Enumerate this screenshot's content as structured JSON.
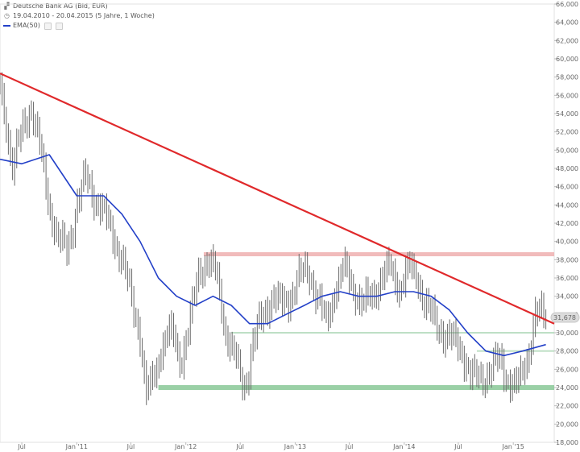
{
  "legend": {
    "title": "Deutsche Bank AG (Bid, EUR)",
    "range": "19.04.2010 - 20.04.2015 (5 Jahre, 1 Woche)",
    "ema": "EMA(50)"
  },
  "icons": {
    "title": "chart-icon",
    "range": "clock-icon",
    "ema": "line-icon"
  },
  "colors": {
    "price": "#6a6a6a",
    "ema": "#2340c8",
    "trend": "#e0292b",
    "resistance": "#f0b4b4",
    "support": "#b7dcbf",
    "support_strong": "#8fcb9c",
    "last_badge": "#dcdcdc"
  },
  "chart_data": {
    "type": "line",
    "ylim": [
      18,
      66
    ],
    "yticks": [
      "18,000",
      "20,000",
      "22,000",
      "24,000",
      "26,000",
      "28,000",
      "30,000",
      "32,000",
      "34,000",
      "36,000",
      "38,000",
      "40,000",
      "42,000",
      "44,000",
      "46,000",
      "48,000",
      "50,000",
      "52,000",
      "54,000",
      "56,000",
      "58,000",
      "60,000",
      "62,000",
      "64,000",
      "66,000"
    ],
    "xlim": [
      "2010-04-19",
      "2015-05-18"
    ],
    "xticks": [
      {
        "label": "Jul",
        "date": "2010-07-01"
      },
      {
        "label": "Jan '11",
        "date": "2011-01-01"
      },
      {
        "label": "Jul",
        "date": "2011-07-01"
      },
      {
        "label": "Jan '12",
        "date": "2012-01-01"
      },
      {
        "label": "Jul",
        "date": "2012-07-01"
      },
      {
        "label": "Jan '13",
        "date": "2013-01-01"
      },
      {
        "label": "Jul",
        "date": "2013-07-01"
      },
      {
        "label": "Jan '14",
        "date": "2014-01-01"
      },
      {
        "label": "Jul",
        "date": "2014-07-01"
      },
      {
        "label": "Jan '15",
        "date": "2015-01-01"
      }
    ],
    "last_value": "31,678",
    "series": [
      {
        "kind": "price",
        "x": [
          "2010-04-19",
          "2010-05-10",
          "2010-06-01",
          "2010-07-01",
          "2010-08-01",
          "2010-09-01",
          "2010-10-01",
          "2010-11-01",
          "2010-12-01",
          "2011-01-01",
          "2011-02-01",
          "2011-03-01",
          "2011-04-01",
          "2011-05-01",
          "2011-06-01",
          "2011-07-01",
          "2011-08-01",
          "2011-08-20",
          "2011-09-15",
          "2011-10-15",
          "2011-11-15",
          "2011-12-15",
          "2012-01-15",
          "2012-02-15",
          "2012-03-15",
          "2012-04-15",
          "2012-05-15",
          "2012-06-15",
          "2012-07-15",
          "2012-08-15",
          "2012-09-15",
          "2012-10-15",
          "2012-11-15",
          "2012-12-15",
          "2013-01-15",
          "2013-02-15",
          "2013-03-15",
          "2013-04-15",
          "2013-05-15",
          "2013-06-15",
          "2013-07-15",
          "2013-08-15",
          "2013-09-15",
          "2013-10-15",
          "2013-11-15",
          "2013-12-15",
          "2014-01-15",
          "2014-02-15",
          "2014-03-15",
          "2014-04-15",
          "2014-05-15",
          "2014-06-15",
          "2014-07-15",
          "2014-08-15",
          "2014-09-15",
          "2014-10-15",
          "2014-11-15",
          "2014-12-15",
          "2015-01-15",
          "2015-02-15",
          "2015-03-15",
          "2015-04-20"
        ],
        "values": [
          57,
          53,
          48,
          52,
          55,
          50,
          44,
          40,
          39,
          44,
          47,
          45,
          43,
          41,
          38,
          34,
          30,
          23,
          25,
          29,
          30,
          27,
          31,
          37,
          38,
          36,
          30,
          27,
          24,
          29,
          32,
          34,
          33,
          34,
          36,
          37,
          34,
          31,
          35,
          37,
          35,
          33,
          34,
          36,
          37,
          35,
          37,
          36,
          33,
          31,
          30,
          29,
          28,
          25,
          25,
          26,
          27,
          25,
          24,
          27,
          32,
          31.7
        ]
      },
      {
        "kind": "ema",
        "x": [
          "2010-04-19",
          "2010-07-01",
          "2010-10-01",
          "2011-01-01",
          "2011-04-01",
          "2011-06-01",
          "2011-08-01",
          "2011-10-01",
          "2011-12-01",
          "2012-02-01",
          "2012-04-01",
          "2012-06-01",
          "2012-08-01",
          "2012-10-01",
          "2012-12-01",
          "2013-02-01",
          "2013-04-01",
          "2013-06-01",
          "2013-08-01",
          "2013-10-01",
          "2013-12-01",
          "2014-02-01",
          "2014-04-01",
          "2014-06-01",
          "2014-08-01",
          "2014-10-01",
          "2014-12-01",
          "2015-02-01",
          "2015-04-20"
        ],
        "values": [
          49,
          48.5,
          49.5,
          45,
          45,
          43,
          40,
          36,
          34,
          33,
          34,
          33,
          31,
          31,
          32,
          33,
          34,
          34.5,
          34,
          34,
          34.5,
          34.5,
          34,
          32.5,
          30,
          28,
          27.5,
          28,
          28.7
        ]
      },
      {
        "kind": "trend",
        "x": [
          "2010-04-19",
          "2015-05-18"
        ],
        "values": [
          58.4,
          31.0
        ]
      }
    ],
    "levels": [
      {
        "kind": "resistance",
        "value": 38.6,
        "from": "2012-03-01"
      },
      {
        "kind": "support",
        "value": 30.0,
        "from": "2012-06-01"
      },
      {
        "kind": "support",
        "value": 28.0,
        "from": "2014-09-01"
      },
      {
        "kind": "support_strong",
        "value": 24.0,
        "from": "2011-10-01"
      }
    ]
  }
}
